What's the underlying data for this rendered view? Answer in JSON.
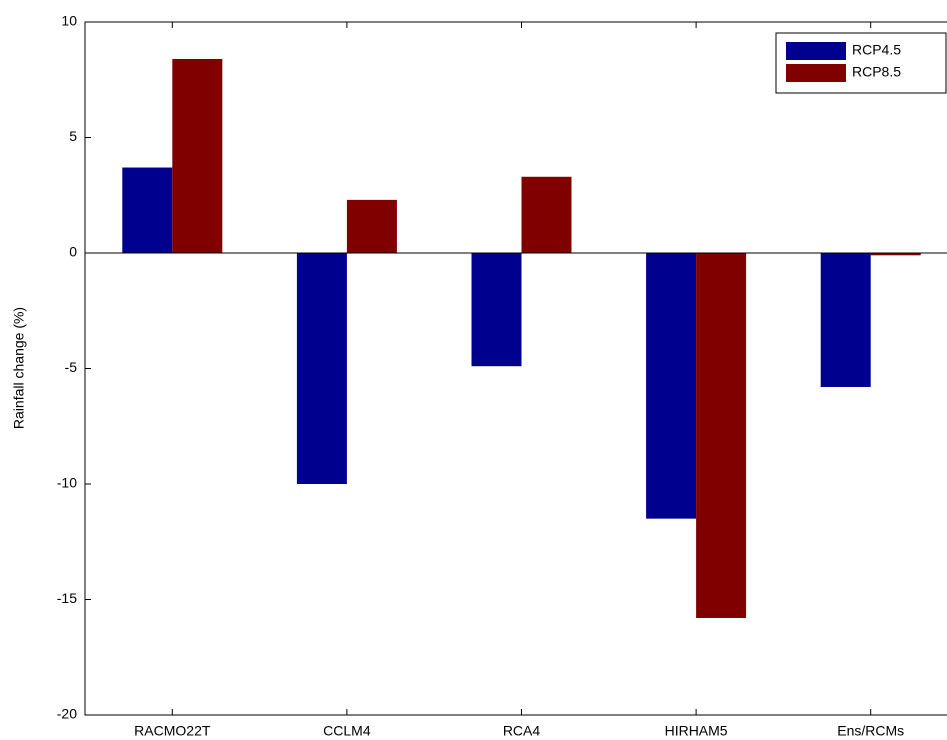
{
  "chart_data": {
    "type": "bar",
    "y_label": "Rainfall change (%)",
    "categories": [
      "RACMO22T",
      "CCLM4",
      "RCA4",
      "HIRHAM5",
      "Ens/RCMs"
    ],
    "series": [
      {
        "name": "RCP4.5",
        "color": "#00008f",
        "values": [
          3.7,
          -10.0,
          -4.9,
          -11.5,
          -5.8
        ]
      },
      {
        "name": "RCP8.5",
        "color": "#800000",
        "values": [
          8.4,
          2.3,
          3.3,
          -15.8,
          -0.1
        ]
      }
    ],
    "ylim": [
      -20,
      10
    ],
    "yticks": [
      -20,
      -15,
      -10,
      -5,
      0,
      5,
      10
    ],
    "legend": "upper right"
  }
}
